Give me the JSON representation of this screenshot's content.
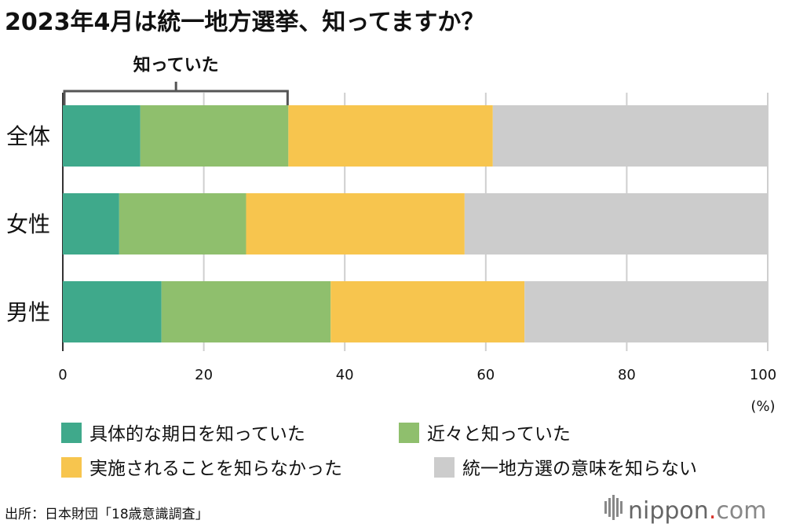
{
  "chart_data": {
    "type": "stacked-bar-horizontal",
    "title": "2023年4月は統一地方選挙、知ってますか？",
    "categories": [
      "全体",
      "女性",
      "男性"
    ],
    "series": [
      {
        "name": "具体的な期日を知っていた",
        "color": "#3fa98b",
        "values": [
          11,
          8,
          14
        ]
      },
      {
        "name": "近々と知っていた",
        "color": "#8fbf6d",
        "values": [
          21,
          18,
          24
        ]
      },
      {
        "name": "実施されることを知らなかった",
        "color": "#f7c54e",
        "values": [
          29,
          31,
          27.5
        ]
      },
      {
        "name": "統一地方選の意味を知らない",
        "color": "#cccccc",
        "values": [
          39,
          43,
          34.5
        ]
      }
    ],
    "xlim": [
      0,
      100
    ],
    "xticks": [
      0,
      20,
      40,
      60,
      80,
      100
    ],
    "xlabel": "(%)",
    "grid": true,
    "bracket": {
      "label": "知っていた",
      "from": 0,
      "to": 32,
      "bar_index": 0
    }
  },
  "source": "出所：日本財団「18歳意識調査」",
  "brand": {
    "name": "nippon",
    "suffix": "com"
  }
}
